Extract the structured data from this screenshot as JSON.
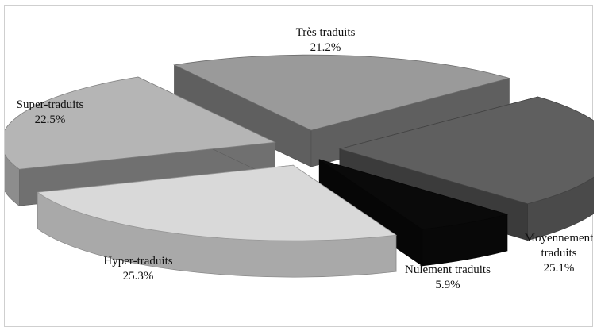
{
  "chart_data": {
    "type": "pie",
    "style": "exploded 3D pie",
    "title": "",
    "legend": "none",
    "slices": [
      {
        "label": "Très traduits",
        "display_label": [
          "Très traduits"
        ],
        "value": 21.2,
        "value_label": "21.2%",
        "color": "#9a9a9a"
      },
      {
        "label": "Moyennement traduits",
        "display_label": [
          "Moyennement",
          "traduits"
        ],
        "value": 25.1,
        "value_label": "25.1%",
        "color": "#5f5f5f"
      },
      {
        "label": "Nulement traduits",
        "display_label": [
          "Nulement traduits"
        ],
        "value": 5.9,
        "value_label": "5.9%",
        "color": "#0a0a0a"
      },
      {
        "label": "Hyper-traduits",
        "display_label": [
          "Hyper-traduits"
        ],
        "value": 25.3,
        "value_label": "25.3%",
        "color": "#d9d9d9"
      },
      {
        "label": "Super-traduits",
        "display_label": [
          "Super-traduits"
        ],
        "value": 22.5,
        "value_label": "22.5%",
        "color": "#b5b5b5"
      }
    ]
  }
}
